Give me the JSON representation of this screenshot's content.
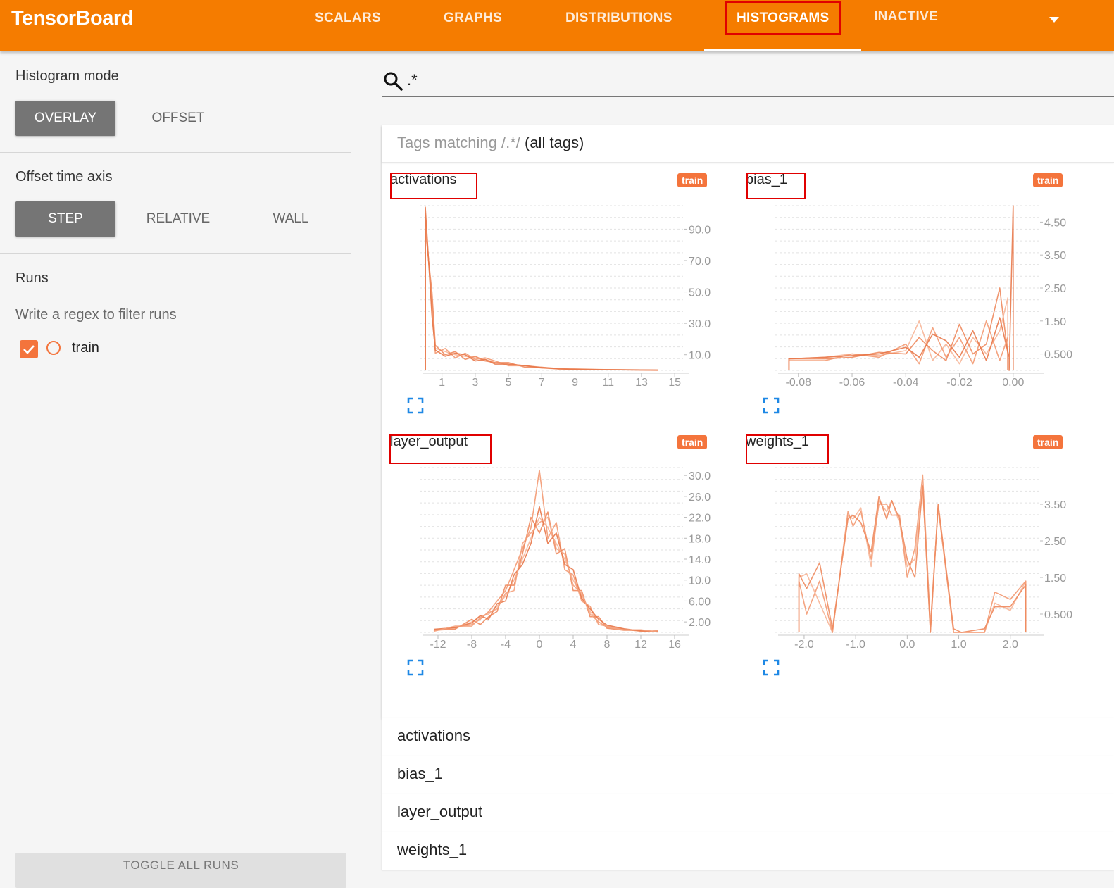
{
  "app": {
    "title": "TensorBoard"
  },
  "nav": {
    "tabs": [
      {
        "label": "SCALARS"
      },
      {
        "label": "GRAPHS"
      },
      {
        "label": "DISTRIBUTIONS"
      },
      {
        "label": "HISTOGRAMS",
        "active": true
      }
    ],
    "inactive_select": {
      "value": "INACTIVE"
    }
  },
  "sidebar": {
    "histogram_mode": {
      "title": "Histogram mode",
      "options": [
        "OVERLAY",
        "OFFSET"
      ],
      "selected": "OVERLAY"
    },
    "offset_time_axis": {
      "title": "Offset time axis",
      "options": [
        "STEP",
        "RELATIVE",
        "WALL"
      ],
      "selected": "STEP"
    },
    "runs": {
      "title": "Runs",
      "filter_placeholder": "Write a regex to filter runs",
      "items": [
        {
          "label": "train",
          "checked": true
        }
      ]
    },
    "toggle_all_label": "TOGGLE ALL RUNS"
  },
  "search": {
    "value": ".*"
  },
  "tags_header": {
    "prefix": "Tags matching ",
    "pattern": "/.*/",
    "suffix": "(all tags)"
  },
  "colors": {
    "accent": "#f57c00",
    "run": "#f4743c",
    "highlight": "#e00000",
    "expand_icon": "#1e88e5"
  },
  "charts": [
    {
      "title": "activations",
      "run": "train"
    },
    {
      "title": "bias_1",
      "run": "train"
    },
    {
      "title": "layer_output",
      "run": "train"
    },
    {
      "title": "weights_1",
      "run": "train"
    }
  ],
  "chart_data": [
    {
      "type": "line",
      "title": "activations",
      "x_ticks": [
        "1",
        "3",
        "5",
        "7",
        "9",
        "11",
        "13",
        "15"
      ],
      "y_ticks": [
        "90.0",
        "70.0",
        "50.0",
        "30.0",
        "10.0"
      ],
      "xlim": [
        0,
        15.5
      ],
      "ylim": [
        0,
        105
      ],
      "series": [
        {
          "x": [
            0.0,
            0.0,
            0.4,
            0.6,
            1.2,
            1.8,
            2.4,
            3.0,
            3.6,
            4.2,
            5.0,
            6.0,
            7.0,
            8.0,
            9.0,
            11.0,
            13.0,
            14.0,
            14.0
          ],
          "values": [
            0,
            94,
            45,
            14,
            12,
            10,
            9,
            8,
            7,
            5,
            4,
            3,
            2,
            1,
            1,
            0.5,
            0.3,
            0.2,
            0
          ]
        },
        {
          "x": [
            0.0,
            0.0,
            0.4,
            0.6,
            1.2,
            1.8,
            2.4,
            3.0,
            3.6,
            4.2,
            5.0,
            6.0,
            7.0,
            8.0,
            9.0,
            11.0,
            13.0,
            14.0,
            14.0
          ],
          "values": [
            0,
            100,
            40,
            11,
            14,
            8,
            11,
            7,
            8,
            6,
            3,
            3,
            1.5,
            1,
            0.8,
            0.4,
            0.3,
            0.2,
            0
          ]
        },
        {
          "x": [
            0.0,
            0.0,
            0.4,
            0.6,
            1.2,
            1.8,
            2.4,
            3.0,
            3.6,
            4.2,
            5.0,
            6.0,
            7.0,
            8.0,
            9.0,
            11.0,
            13.0,
            14.0,
            14.0
          ],
          "values": [
            0,
            90,
            50,
            16,
            10,
            12,
            7,
            9,
            6,
            5,
            5,
            2,
            2,
            1.2,
            0.6,
            0.5,
            0.2,
            0.1,
            0
          ]
        },
        {
          "x": [
            0.0,
            0.0,
            0.4,
            0.6,
            1.2,
            1.8,
            2.4,
            3.0,
            3.6,
            4.2,
            5.0,
            6.0,
            7.0,
            8.0,
            9.0,
            11.0,
            13.0,
            14.0,
            14.0
          ],
          "values": [
            0,
            104,
            35,
            13,
            9,
            11,
            10,
            6,
            7,
            4,
            4,
            3,
            1.8,
            0.9,
            0.7,
            0.4,
            0.3,
            0.2,
            0
          ]
        }
      ]
    },
    {
      "type": "line",
      "title": "bias_1",
      "x_ticks": [
        "-0.08",
        "-0.06",
        "-0.04",
        "-0.02",
        "0.00"
      ],
      "y_ticks": [
        "4.50",
        "3.50",
        "2.50",
        "1.50",
        "0.500"
      ],
      "xlim": [
        -0.0865,
        0.0095
      ],
      "ylim": [
        0,
        5.0
      ],
      "series": [
        {
          "x": [
            -0.0835,
            -0.0835,
            -0.07,
            -0.06,
            -0.05,
            -0.04,
            -0.035,
            -0.03,
            -0.025,
            -0.02,
            -0.015,
            -0.01,
            -0.005,
            -0.002,
            -0.002
          ],
          "values": [
            0,
            0.35,
            0.4,
            0.5,
            0.45,
            0.6,
            1.5,
            0.3,
            0.8,
            0.2,
            1.0,
            0.5,
            1.2,
            2.2,
            0
          ]
        },
        {
          "x": [
            -0.0835,
            -0.0835,
            -0.07,
            -0.06,
            -0.05,
            -0.04,
            -0.035,
            -0.03,
            -0.025,
            -0.02,
            -0.015,
            -0.01,
            -0.005,
            -0.002,
            -0.002
          ],
          "values": [
            0,
            0.3,
            0.3,
            0.5,
            0.4,
            0.8,
            0.2,
            1.3,
            0.4,
            1.0,
            0.2,
            1.5,
            0.3,
            1.0,
            0
          ]
        },
        {
          "x": [
            -0.0835,
            -0.0835,
            -0.07,
            -0.06,
            -0.05,
            -0.04,
            -0.035,
            -0.03,
            -0.025,
            -0.02,
            -0.015,
            -0.01,
            -0.005,
            -0.002,
            -0.002
          ],
          "values": [
            0,
            0.35,
            0.35,
            0.4,
            0.55,
            0.5,
            1.0,
            0.6,
            0.3,
            1.4,
            0.5,
            0.8,
            2.5,
            0.5,
            0
          ]
        },
        {
          "x": [
            -0.0835,
            -0.0835,
            -0.07,
            -0.06,
            -0.05,
            -0.04,
            -0.035,
            -0.03,
            -0.025,
            -0.02,
            -0.015,
            -0.01,
            -0.005,
            -0.0015,
            -0.0015,
            0.0,
            0.0
          ],
          "values": [
            0,
            0.35,
            0.4,
            0.45,
            0.5,
            0.7,
            0.4,
            1.1,
            0.9,
            0.4,
            1.2,
            0.3,
            1.6,
            0.4,
            0,
            5.0,
            0
          ]
        }
      ]
    },
    {
      "type": "line",
      "title": "layer_output",
      "x_ticks": [
        "-12",
        "-8",
        "-4",
        "0",
        "4",
        "8",
        "12",
        "16"
      ],
      "y_ticks": [
        "30.0",
        "26.0",
        "22.0",
        "18.0",
        "14.0",
        "10.0",
        "6.00",
        "2.00"
      ],
      "xlim": [
        -13.5,
        17
      ],
      "ylim": [
        0,
        31.5
      ],
      "series": [
        {
          "x": [
            -12.5,
            -10,
            -8,
            -7,
            -6,
            -5,
            -4,
            -3,
            -2,
            -1,
            0,
            1,
            2,
            3,
            4,
            5,
            6,
            7,
            8,
            10,
            12,
            14
          ],
          "values": [
            0.5,
            0.8,
            2,
            3,
            3.5,
            5,
            7,
            10,
            14,
            18,
            22,
            20,
            17,
            14,
            10,
            7,
            4,
            2,
            1,
            0.5,
            0.3,
            0.2
          ]
        },
        {
          "x": [
            -12.5,
            -10,
            -8,
            -7,
            -6,
            -5,
            -4,
            -3,
            -2,
            -1,
            0,
            1,
            2,
            3,
            4,
            5,
            6,
            7,
            8,
            10,
            12,
            14
          ],
          "values": [
            0.3,
            1,
            1.5,
            2.5,
            4,
            6,
            8,
            12,
            16,
            20,
            31,
            18,
            21,
            12,
            11,
            6,
            5,
            1.5,
            1.2,
            0.6,
            0.2,
            0.3
          ]
        },
        {
          "x": [
            -12.5,
            -10,
            -8,
            -7,
            -6,
            -5,
            -4,
            -3,
            -2,
            -1,
            0,
            1,
            2,
            3,
            4,
            5,
            6,
            7,
            8,
            10,
            12,
            14
          ],
          "values": [
            0.4,
            0.6,
            2.5,
            1.5,
            3,
            4,
            9,
            9,
            15,
            22,
            19,
            23,
            15,
            16,
            8,
            8,
            3,
            3,
            0.8,
            0.4,
            0.4,
            0.1
          ]
        },
        {
          "x": [
            -12.5,
            -10,
            -8,
            -7,
            -6,
            -5,
            -4,
            -3,
            -2,
            -1,
            0,
            1,
            2,
            3,
            4,
            5,
            6,
            7,
            8,
            10,
            12,
            14
          ],
          "values": [
            0.6,
            0.9,
            1.8,
            3.2,
            2.5,
            5.5,
            6,
            11,
            13,
            17,
            24,
            17,
            19,
            13,
            12,
            6.5,
            4.5,
            2.5,
            1.4,
            0.7,
            0.3,
            0.2
          ]
        },
        {
          "x": [
            -12.5,
            -10,
            -8,
            -7,
            -6,
            -5,
            -4,
            -3,
            -2,
            -1,
            0,
            1,
            2,
            3,
            4,
            5,
            6,
            7,
            8,
            10,
            12,
            14
          ],
          "values": [
            0.2,
            1.2,
            1.2,
            2.8,
            3.8,
            4.5,
            7.5,
            8,
            17,
            19,
            21,
            22,
            16,
            15,
            9,
            7.5,
            3.5,
            2,
            1,
            0.5,
            0.5,
            0.1
          ]
        }
      ]
    },
    {
      "type": "line",
      "title": "weights_1",
      "x_ticks": [
        "-2.0",
        "-1.0",
        "0.0",
        "1.0",
        "2.0"
      ],
      "y_ticks": [
        "3.50",
        "2.50",
        "1.50",
        "0.500"
      ],
      "xlim": [
        -2.45,
        2.55
      ],
      "ylim": [
        0,
        4.5
      ],
      "series": [
        {
          "x": [
            -2.1,
            -2.1,
            -1.95,
            -1.7,
            -1.45,
            -1.15,
            -1.05,
            -0.9,
            -0.7,
            -0.55,
            -0.4,
            -0.3,
            -0.15,
            0.0,
            0.15,
            0.3,
            0.45,
            0.6,
            0.9,
            1.05,
            1.5,
            1.7,
            2.0,
            2.3,
            2.3
          ],
          "values": [
            0,
            1.5,
            1.6,
            0.8,
            0,
            3.2,
            3.1,
            3.4,
            1.8,
            3.6,
            3.3,
            3.6,
            3.0,
            1.8,
            2.0,
            4.0,
            0,
            3.5,
            0,
            0,
            0,
            0.8,
            0.6,
            1.4,
            0
          ]
        },
        {
          "x": [
            -2.1,
            -2.1,
            -1.95,
            -1.7,
            -1.45,
            -1.15,
            -1.05,
            -0.9,
            -0.7,
            -0.55,
            -0.4,
            -0.3,
            -0.15,
            0.0,
            0.15,
            0.3,
            0.45,
            0.6,
            0.9,
            1.05,
            1.5,
            1.7,
            2.0,
            2.3,
            2.3
          ],
          "values": [
            0,
            1.4,
            0.5,
            1.4,
            0,
            3.3,
            2.9,
            3.3,
            2.0,
            3.5,
            3.5,
            3.2,
            3.2,
            1.5,
            2.3,
            4.3,
            0.2,
            3.4,
            0,
            0,
            0,
            1.1,
            0.9,
            1.4,
            0
          ]
        },
        {
          "x": [
            -2.1,
            -2.1,
            -1.95,
            -1.7,
            -1.45,
            -1.15,
            -1.05,
            -0.9,
            -0.7,
            -0.55,
            -0.4,
            -0.3,
            -0.15,
            0.0,
            0.15,
            0.3,
            0.45,
            0.6,
            0.9,
            1.05,
            1.5,
            1.7,
            2.0,
            2.3,
            2.3
          ],
          "values": [
            0,
            1.6,
            1.2,
            1.9,
            0.1,
            3.1,
            3.2,
            3.0,
            2.2,
            3.7,
            3.1,
            3.6,
            3.1,
            2.0,
            1.5,
            4.0,
            0,
            3.5,
            0.1,
            0,
            0.1,
            0.7,
            0.7,
            1.3,
            0
          ]
        }
      ]
    }
  ],
  "tag_groups": [
    "activations",
    "bias_1",
    "layer_output",
    "weights_1"
  ]
}
